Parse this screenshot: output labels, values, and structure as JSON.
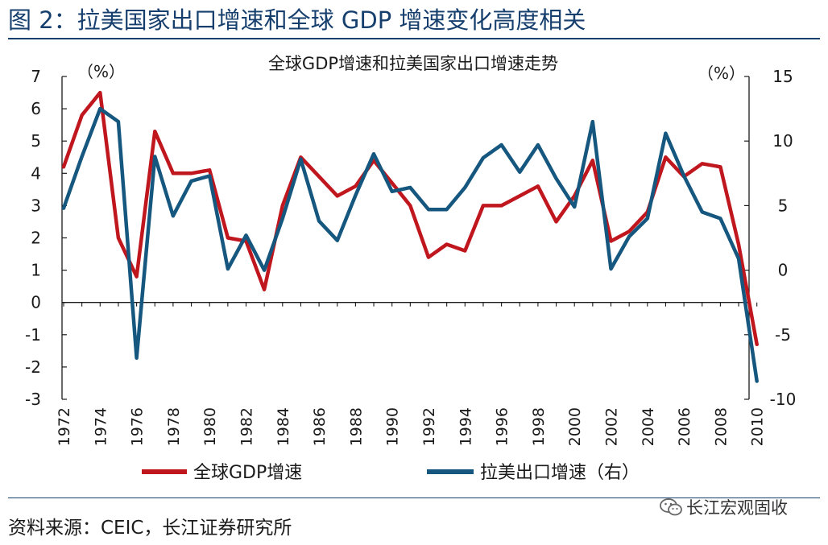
{
  "figure_title": "图 2：拉美国家出口增速和全球 GDP 增速变化高度相关",
  "source_note": "资料来源：CEIC，长江证券研究所",
  "watermark": {
    "text": "长江宏观固收",
    "icon": "wechat-icon"
  },
  "colors": {
    "gdp": "#c0161e",
    "exports": "#15577e",
    "title": "#163f6e",
    "axis": "#1a1a1a"
  },
  "chart_data": {
    "type": "line",
    "title": "全球GDP增速和拉美国家出口增速走势",
    "y_left_unit": "（%）",
    "y_right_unit": "（%）",
    "y_left_range": [
      -3,
      7
    ],
    "y_right_range": [
      -10,
      15
    ],
    "y_left_ticks": [
      "7",
      "6",
      "5",
      "4",
      "3",
      "2",
      "1",
      "0",
      "-1",
      "-2",
      "-3"
    ],
    "y_right_ticks": [
      "15",
      "10",
      "5",
      "0",
      "-5",
      "-10"
    ],
    "x": [
      1972,
      1973,
      1974,
      1975,
      1976,
      1977,
      1978,
      1979,
      1980,
      1981,
      1982,
      1983,
      1984,
      1985,
      1986,
      1987,
      1988,
      1989,
      1990,
      1991,
      1992,
      1993,
      1994,
      1995,
      1996,
      1997,
      1998,
      1999,
      2000,
      2001,
      2002,
      2003,
      2004,
      2005,
      2006,
      2007,
      2008,
      2009,
      2010
    ],
    "x_tick_labels": [
      "1972",
      "1974",
      "1976",
      "1978",
      "1980",
      "1982",
      "1984",
      "1986",
      "1988",
      "1990",
      "1992",
      "1994",
      "1996",
      "1998",
      "2000",
      "2002",
      "2004",
      "2006",
      "2008",
      "2010"
    ],
    "series": [
      {
        "name": "全球GDP增速",
        "axis": "left",
        "values": [
          4.2,
          5.8,
          6.5,
          2.0,
          0.8,
          5.3,
          4.0,
          4.0,
          4.1,
          2.0,
          1.9,
          0.4,
          3.0,
          4.5,
          3.9,
          3.3,
          3.6,
          4.4,
          3.7,
          3.0,
          1.4,
          1.8,
          1.6,
          3.0,
          3.0,
          3.3,
          3.6,
          2.5,
          3.3,
          4.4,
          1.9,
          2.2,
          2.8,
          4.5,
          3.9,
          4.3,
          4.2,
          1.8,
          -1.3
        ]
      },
      {
        "name": "拉美出口增速（右）",
        "axis": "right",
        "values": [
          4.8,
          8.8,
          12.5,
          11.5,
          -6.8,
          8.8,
          4.2,
          6.9,
          7.3,
          0.1,
          2.7,
          0.0,
          4.0,
          8.6,
          3.8,
          2.3,
          5.8,
          9.0,
          6.1,
          6.4,
          4.7,
          4.7,
          6.4,
          8.7,
          9.7,
          7.6,
          9.7,
          7.1,
          4.9,
          11.5,
          0.1,
          2.6,
          4.0,
          10.6,
          7.3,
          4.5,
          4.0,
          0.9,
          -8.6
        ]
      }
    ],
    "legend_position": "bottom"
  }
}
